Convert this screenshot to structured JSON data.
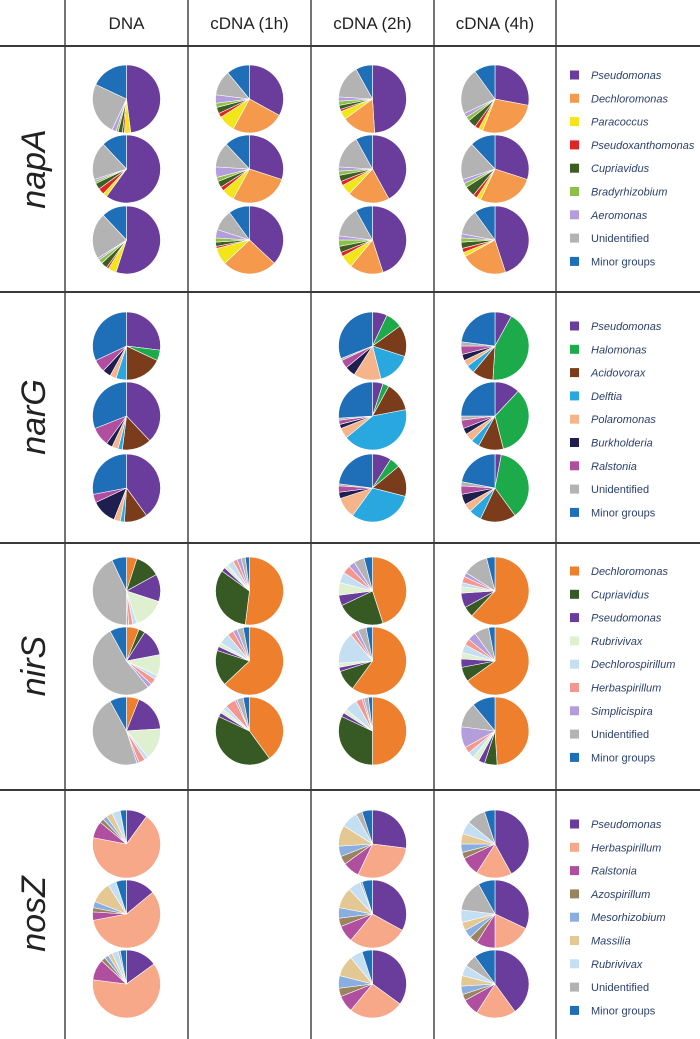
{
  "header": {
    "columns": [
      "DNA",
      "cDNA (1h)",
      "cDNA (2h)",
      "cDNA (4h)"
    ]
  },
  "chart_data": {
    "type": "pie",
    "title": "",
    "description_note": "Pie charts of relative abundance (%) per gene, sample type and replicate; each pie lists slices in legend order.",
    "panels": [
      {
        "gene": "napA",
        "legend": [
          {
            "label": "Pseudomonas",
            "italic": true,
            "color": "#6a3c9b"
          },
          {
            "label": "Dechloromonas",
            "italic": true,
            "color": "#f59a4c"
          },
          {
            "label": "Paracoccus",
            "italic": true,
            "color": "#f2e51a"
          },
          {
            "label": "Pseudoxanthomonas",
            "italic": true,
            "color": "#e02424"
          },
          {
            "label": "Cupriavidus",
            "italic": true,
            "color": "#3d5e23"
          },
          {
            "label": "Bradyrhizobium",
            "italic": true,
            "color": "#8cc04a"
          },
          {
            "label": "Aeromonas",
            "italic": true,
            "color": "#b39ddb"
          },
          {
            "label": "Unidentified",
            "italic": false,
            "color": "#b3b3b3"
          },
          {
            "label": "Minor groups",
            "italic": false,
            "color": "#1e6eb8"
          }
        ],
        "pies": [
          [
            [
              48,
              0,
              3,
              1,
              2,
              1,
              2,
              25,
              18
            ],
            [
              60,
              0,
              2,
              3,
              3,
              1,
              1,
              18,
              12
            ],
            [
              55,
              0,
              4,
              1,
              3,
              2,
              1,
              22,
              12
            ]
          ],
          [
            [
              33,
              25,
              8,
              2,
              3,
              2,
              4,
              12,
              11
            ],
            [
              30,
              28,
              6,
              2,
              3,
              2,
              5,
              12,
              12
            ],
            [
              37,
              26,
              8,
              1,
              2,
              2,
              4,
              10,
              10
            ]
          ],
          [
            [
              49,
              16,
              4,
              1,
              2,
              2,
              2,
              16,
              8
            ],
            [
              42,
              20,
              5,
              2,
              3,
              2,
              2,
              16,
              8
            ],
            [
              45,
              16,
              6,
              2,
              3,
              3,
              2,
              15,
              8
            ]
          ],
          [
            [
              28,
              28,
              2,
              2,
              4,
              2,
              2,
              22,
              10
            ],
            [
              30,
              27,
              2,
              2,
              5,
              2,
              2,
              18,
              12
            ],
            [
              45,
              22,
              2,
              2,
              3,
              2,
              2,
              12,
              10
            ]
          ]
        ]
      },
      {
        "gene": "narG",
        "legend": [
          {
            "label": "Pseudomonas",
            "italic": true,
            "color": "#6a3c9b"
          },
          {
            "label": "Halomonas",
            "italic": true,
            "color": "#1daa4a"
          },
          {
            "label": "Acidovorax",
            "italic": true,
            "color": "#7a3c1a"
          },
          {
            "label": "Delftia",
            "italic": true,
            "color": "#29a8e0"
          },
          {
            "label": "Polaromonas",
            "italic": true,
            "color": "#f5b48a"
          },
          {
            "label": "Burkholderia",
            "italic": true,
            "color": "#1f1f4f"
          },
          {
            "label": "Ralstonia",
            "italic": true,
            "color": "#b04ea0"
          },
          {
            "label": "Unidentified",
            "italic": false,
            "color": "#b3b3b3"
          },
          {
            "label": "Minor groups",
            "italic": false,
            "color": "#1e6eb8"
          }
        ],
        "pies": [
          [
            [
              27,
              5,
              18,
              5,
              3,
              4,
              6,
              0,
              32
            ],
            [
              38,
              0,
              14,
              2,
              3,
              3,
              9,
              0,
              31
            ],
            [
              40,
              0,
              11,
              2,
              3,
              12,
              4,
              0,
              28
            ]
          ],
          null,
          [
            [
              7,
              8,
              15,
              16,
              13,
              5,
              4,
              1,
              31
            ],
            [
              5,
              3,
              14,
              42,
              5,
              2,
              2,
              1,
              26
            ],
            [
              9,
              5,
              15,
              31,
              10,
              3,
              3,
              1,
              23
            ]
          ],
          [
            [
              8,
              43,
              10,
              4,
              3,
              3,
              4,
              2,
              23
            ],
            [
              12,
              34,
              12,
              4,
              4,
              3,
              4,
              2,
              25
            ],
            [
              3,
              37,
              17,
              6,
              4,
              5,
              4,
              2,
              22
            ]
          ]
        ]
      },
      {
        "gene": "nirS",
        "legend": [
          {
            "label": "Dechloromonas",
            "italic": true,
            "color": "#ee7f2d"
          },
          {
            "label": "Cupriavidus",
            "italic": true,
            "color": "#375a25"
          },
          {
            "label": "Pseudomonas",
            "italic": true,
            "color": "#6a3c9b"
          },
          {
            "label": "Rubrivivax",
            "italic": true,
            "color": "#dff0d0"
          },
          {
            "label": "Dechlorospirillum",
            "italic": true,
            "color": "#c5dff2"
          },
          {
            "label": "Herbaspirillum",
            "italic": true,
            "color": "#f4978e"
          },
          {
            "label": "Simplicispira",
            "italic": true,
            "color": "#b39ddb"
          },
          {
            "label": "Unidentified",
            "italic": false,
            "color": "#b3b3b3"
          },
          {
            "label": "Minor groups",
            "italic": false,
            "color": "#1e6eb8"
          }
        ],
        "pies": [
          [
            [
              5,
              12,
              13,
              15,
              2,
              2,
              1,
              43,
              7
            ],
            [
              6,
              3,
              13,
              10,
              2,
              3,
              2,
              53,
              8
            ],
            [
              6,
              0,
              18,
              15,
              2,
              3,
              1,
              47,
              8
            ]
          ],
          [
            [
              52,
              33,
              2,
              2,
              3,
              2,
              2,
              2,
              2
            ],
            [
              63,
              17,
              2,
              2,
              5,
              3,
              2,
              3,
              3
            ],
            [
              40,
              42,
              2,
              2,
              2,
              5,
              1,
              3,
              3
            ]
          ],
          [
            [
              45,
              23,
              5,
              6,
              5,
              4,
              3,
              5,
              4
            ],
            [
              60,
              10,
              2,
              2,
              15,
              2,
              2,
              4,
              3
            ],
            [
              50,
              32,
              2,
              2,
              6,
              3,
              1,
              2,
              2
            ]
          ],
          [
            [
              62,
              5,
              7,
              3,
              2,
              3,
              2,
              12,
              4
            ],
            [
              65,
              7,
              4,
              3,
              4,
              3,
              4,
              7,
              3
            ],
            [
              49,
              6,
              3,
              3,
              3,
              3,
              10,
              12,
              11
            ]
          ]
        ]
      },
      {
        "gene": "nosZ",
        "legend": [
          {
            "label": "Pseudomonas",
            "italic": true,
            "color": "#6a3c9b"
          },
          {
            "label": "Herbaspirillum",
            "italic": true,
            "color": "#f7a889"
          },
          {
            "label": "Ralstonia",
            "italic": true,
            "color": "#b04ea0"
          },
          {
            "label": "Azospirillum",
            "italic": true,
            "color": "#9a8460"
          },
          {
            "label": "Mesorhizobium",
            "italic": true,
            "color": "#8aaee0"
          },
          {
            "label": "Massilia",
            "italic": true,
            "color": "#e3c894"
          },
          {
            "label": "Rubrivivax",
            "italic": true,
            "color": "#c5dff2"
          },
          {
            "label": "Unidentified",
            "italic": false,
            "color": "#b3b3b3"
          },
          {
            "label": "Minor groups",
            "italic": false,
            "color": "#1e6eb8"
          }
        ],
        "pies": [
          [
            [
              10,
              68,
              8,
              2,
              2,
              3,
              4,
              0,
              3
            ],
            [
              14,
              58,
              4,
              2,
              3,
              10,
              4,
              0,
              5
            ],
            [
              15,
              62,
              10,
              2,
              2,
              2,
              3,
              1,
              3
            ]
          ],
          null,
          [
            [
              27,
              30,
              8,
              4,
              5,
              10,
              8,
              3,
              5
            ],
            [
              33,
              28,
              8,
              4,
              5,
              10,
              6,
              1,
              5
            ],
            [
              35,
              26,
              8,
              4,
              6,
              10,
              6,
              0,
              5
            ]
          ],
          [
            [
              42,
              17,
              9,
              3,
              4,
              5,
              6,
              9,
              5
            ],
            [
              32,
              18,
              9,
              4,
              4,
              4,
              6,
              15,
              8
            ],
            [
              40,
              19,
              8,
              3,
              4,
              5,
              5,
              6,
              10
            ]
          ]
        ]
      }
    ]
  }
}
